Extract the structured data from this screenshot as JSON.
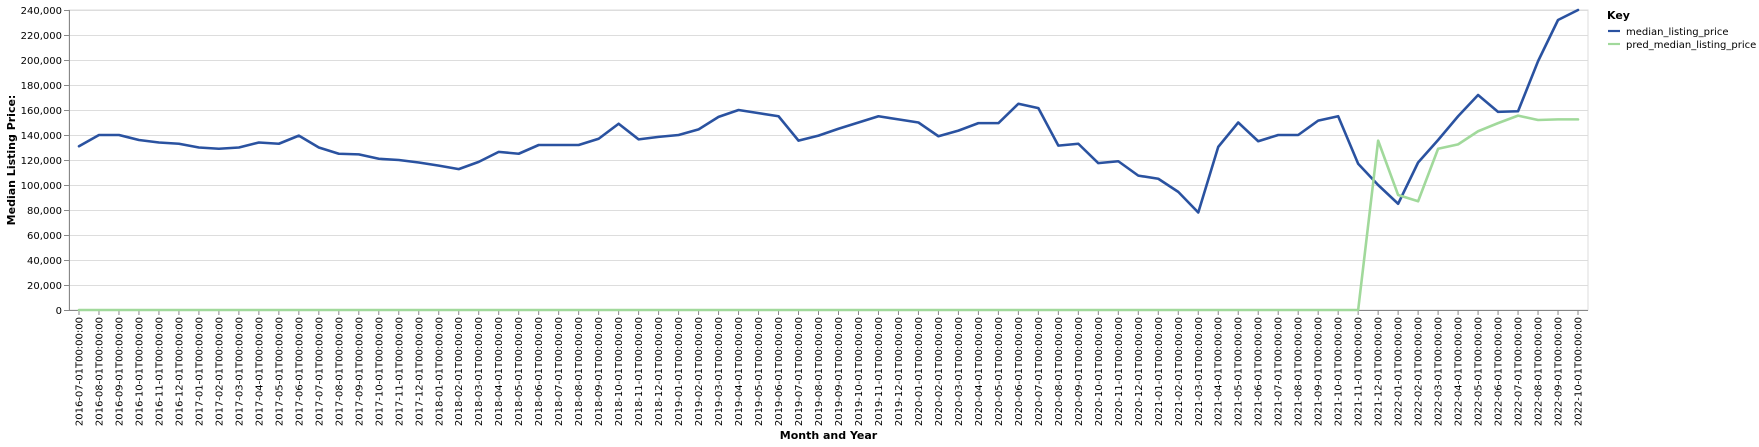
{
  "chart_data": {
    "type": "line",
    "xlabel": "Month and Year",
    "ylabel": "Median Listing Price:",
    "ylim": [
      0,
      240000
    ],
    "yticks": [
      0,
      20000,
      40000,
      60000,
      80000,
      100000,
      120000,
      140000,
      160000,
      180000,
      200000,
      220000,
      240000
    ],
    "ytick_labels": [
      "0",
      "20,000",
      "40,000",
      "60,000",
      "80,000",
      "100,000",
      "120,000",
      "140,000",
      "160,000",
      "180,000",
      "200,000",
      "220,000",
      "240,000"
    ],
    "grid": true,
    "legend": {
      "title": "Key",
      "position": "top-right"
    },
    "x": [
      "2016-07-01T00:00:00",
      "2016-08-01T00:00:00",
      "2016-09-01T00:00:00",
      "2016-10-01T00:00:00",
      "2016-11-01T00:00:00",
      "2016-12-01T00:00:00",
      "2017-01-01T00:00:00",
      "2017-02-01T00:00:00",
      "2017-03-01T00:00:00",
      "2017-04-01T00:00:00",
      "2017-05-01T00:00:00",
      "2017-06-01T00:00:00",
      "2017-07-01T00:00:00",
      "2017-08-01T00:00:00",
      "2017-09-01T00:00:00",
      "2017-10-01T00:00:00",
      "2017-11-01T00:00:00",
      "2017-12-01T00:00:00",
      "2018-01-01T00:00:00",
      "2018-02-01T00:00:00",
      "2018-03-01T00:00:00",
      "2018-04-01T00:00:00",
      "2018-05-01T00:00:00",
      "2018-06-01T00:00:00",
      "2018-07-01T00:00:00",
      "2018-08-01T00:00:00",
      "2018-09-01T00:00:00",
      "2018-10-01T00:00:00",
      "2018-11-01T00:00:00",
      "2018-12-01T00:00:00",
      "2019-01-01T00:00:00",
      "2019-02-01T00:00:00",
      "2019-03-01T00:00:00",
      "2019-04-01T00:00:00",
      "2019-05-01T00:00:00",
      "2019-06-01T00:00:00",
      "2019-07-01T00:00:00",
      "2019-08-01T00:00:00",
      "2019-09-01T00:00:00",
      "2019-10-01T00:00:00",
      "2019-11-01T00:00:00",
      "2019-12-01T00:00:00",
      "2020-01-01T00:00:00",
      "2020-02-01T00:00:00",
      "2020-03-01T00:00:00",
      "2020-04-01T00:00:00",
      "2020-05-01T00:00:00",
      "2020-06-01T00:00:00",
      "2020-07-01T00:00:00",
      "2020-08-01T00:00:00",
      "2020-09-01T00:00:00",
      "2020-10-01T00:00:00",
      "2020-11-01T00:00:00",
      "2020-12-01T00:00:00",
      "2021-01-01T00:00:00",
      "2021-02-01T00:00:00",
      "2021-03-01T00:00:00",
      "2021-04-01T00:00:00",
      "2021-05-01T00:00:00",
      "2021-06-01T00:00:00",
      "2021-07-01T00:00:00",
      "2021-08-01T00:00:00",
      "2021-09-01T00:00:00",
      "2021-10-01T00:00:00",
      "2021-11-01T00:00:00",
      "2021-12-01T00:00:00",
      "2022-01-01T00:00:00",
      "2022-02-01T00:00:00",
      "2022-03-01T00:00:00",
      "2022-04-01T00:00:00",
      "2022-05-01T00:00:00",
      "2022-06-01T00:00:00",
      "2022-07-01T00:00:00",
      "2022-08-01T00:00:00",
      "2022-09-01T00:00:00",
      "2022-10-01T00:00:00"
    ],
    "series": [
      {
        "name": "median_listing_price",
        "color": "#2a52a0",
        "values": [
          131000,
          140000,
          140000,
          136000,
          134000,
          133000,
          130000,
          129000,
          130000,
          134000,
          133000,
          139500,
          130000,
          125000,
          124500,
          121000,
          120000,
          118000,
          115500,
          112700,
          118500,
          126500,
          125000,
          132000,
          132000,
          132000,
          137000,
          149000,
          136500,
          138500,
          140000,
          144500,
          154500,
          160000,
          157500,
          155000,
          135500,
          139500,
          145000,
          150000,
          155000,
          152500,
          150000,
          139000,
          143500,
          149500,
          149500,
          165000,
          161500,
          131500,
          133000,
          117500,
          119000,
          107500,
          105000,
          94500,
          78000,
          130500,
          150000,
          135000,
          140000,
          140000,
          151500,
          155000,
          117000,
          100000,
          85000,
          118000,
          136000,
          155000,
          172000,
          158500,
          159000,
          199000,
          232000,
          240000
        ]
      },
      {
        "name": "pred_median_listing_price",
        "color": "#a1d99b",
        "values": [
          0,
          0,
          0,
          0,
          0,
          0,
          0,
          0,
          0,
          0,
          0,
          0,
          0,
          0,
          0,
          0,
          0,
          0,
          0,
          0,
          0,
          0,
          0,
          0,
          0,
          0,
          0,
          0,
          0,
          0,
          0,
          0,
          0,
          0,
          0,
          0,
          0,
          0,
          0,
          0,
          0,
          0,
          0,
          0,
          0,
          0,
          0,
          0,
          0,
          0,
          0,
          0,
          0,
          0,
          0,
          0,
          0,
          0,
          0,
          0,
          0,
          0,
          0,
          0,
          0,
          135500,
          92000,
          87000,
          129000,
          132500,
          143000,
          149500,
          155500,
          152000,
          152500,
          152500
        ]
      }
    ]
  }
}
